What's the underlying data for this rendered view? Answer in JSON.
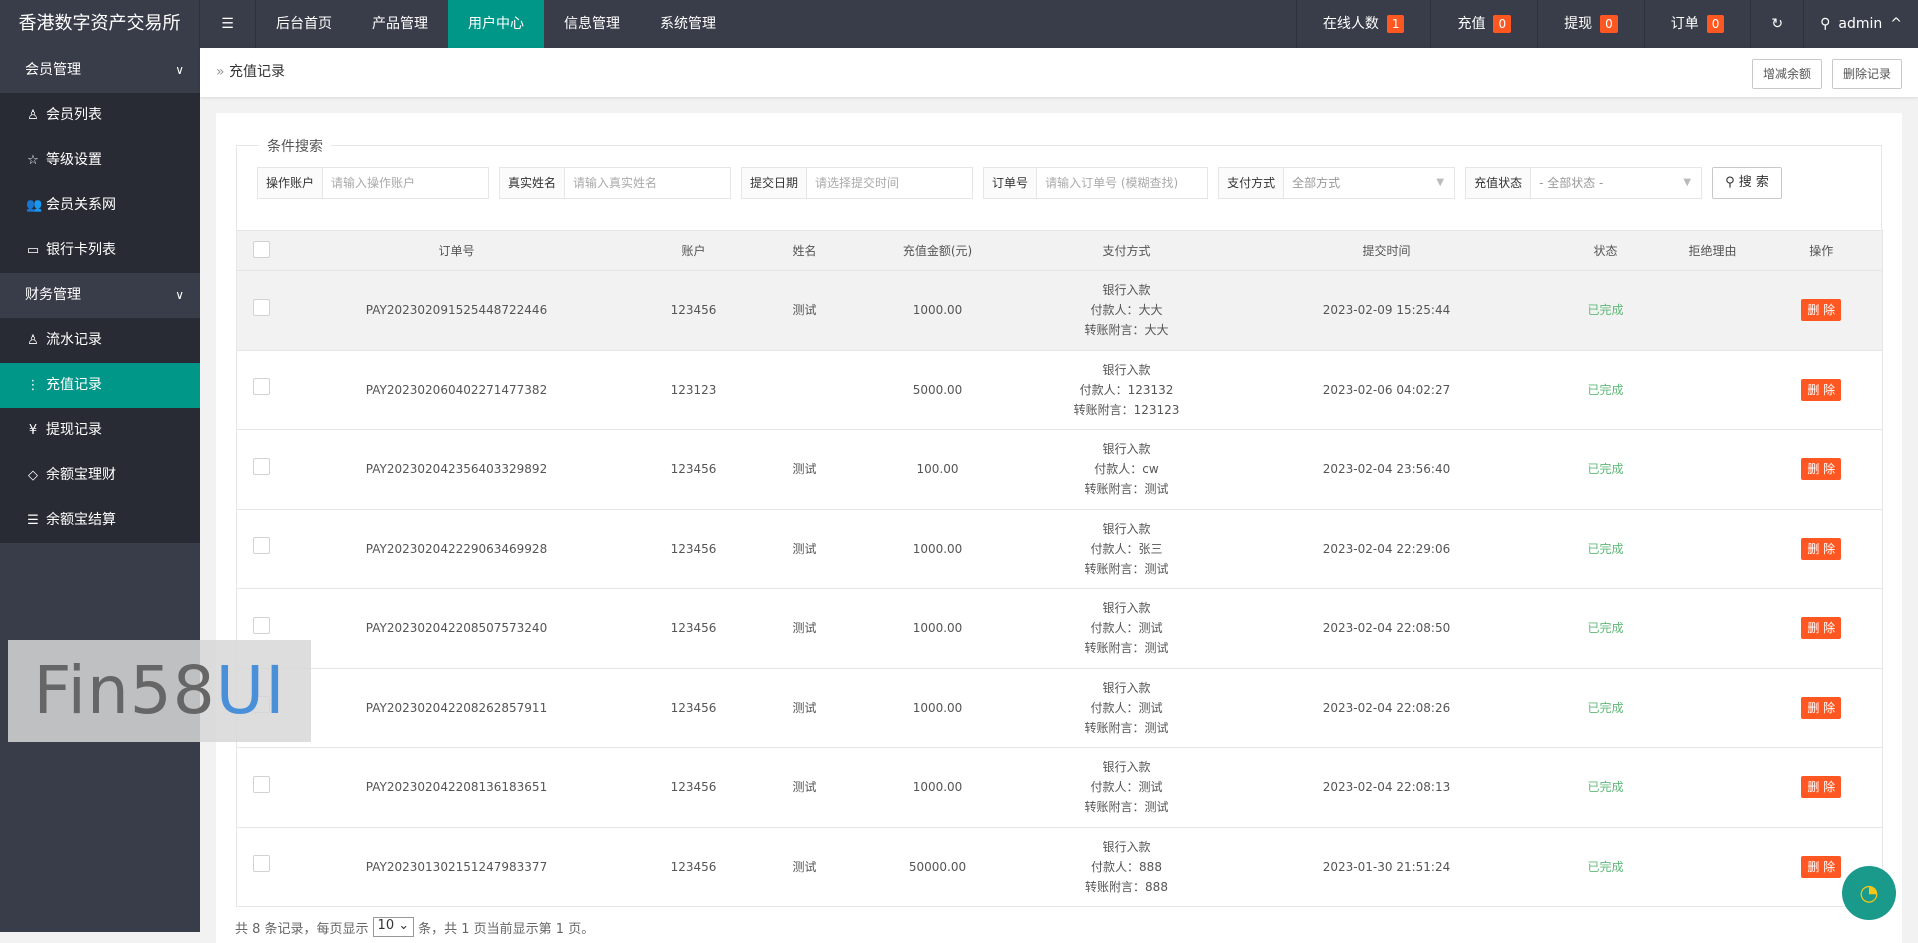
{
  "app_title": "香港数字资产交易所",
  "top_nav": [
    {
      "label": "后台首页"
    },
    {
      "label": "产品管理"
    },
    {
      "label": "用户中心",
      "active": true
    },
    {
      "label": "信息管理"
    },
    {
      "label": "系统管理"
    }
  ],
  "top_right": {
    "online": {
      "label": "在线人数",
      "count": "1"
    },
    "recharge": {
      "label": "充值",
      "count": "0"
    },
    "withdraw": {
      "label": "提现",
      "count": "0"
    },
    "order": {
      "label": "订单",
      "count": "0"
    },
    "user": "admin"
  },
  "sidebar": {
    "groups": [
      {
        "label": "会员管理",
        "items": [
          {
            "label": "会员列表",
            "icon": "user-icon"
          },
          {
            "label": "等级设置",
            "icon": "star-icon"
          },
          {
            "label": "会员关系网",
            "icon": "users-icon"
          },
          {
            "label": "银行卡列表",
            "icon": "card-icon"
          }
        ]
      },
      {
        "label": "财务管理",
        "items": [
          {
            "label": "流水记录",
            "icon": "user-icon"
          },
          {
            "label": "充值记录",
            "icon": "more-icon",
            "active": true
          },
          {
            "label": "提现记录",
            "icon": "yen-icon"
          },
          {
            "label": "余额宝理财",
            "icon": "diamond-icon"
          },
          {
            "label": "余额宝结算",
            "icon": "list-icon"
          }
        ]
      }
    ]
  },
  "breadcrumb": "充值记录",
  "toolbar": {
    "adjust": "增减余额",
    "delete": "删除记录"
  },
  "search": {
    "legend": "条件搜索",
    "account": {
      "label": "操作账户",
      "placeholder": "请输入操作账户"
    },
    "name": {
      "label": "真实姓名",
      "placeholder": "请输入真实姓名"
    },
    "date": {
      "label": "提交日期",
      "placeholder": "请选择提交时间"
    },
    "order": {
      "label": "订单号",
      "placeholder": "请输入订单号 (模糊查找)"
    },
    "pay": {
      "label": "支付方式",
      "value": "全部方式"
    },
    "status": {
      "label": "充值状态",
      "value": "- 全部状态 -"
    },
    "button": "搜 索"
  },
  "table": {
    "headers": [
      "订单号",
      "账户",
      "姓名",
      "充值金额(元)",
      "支付方式",
      "提交时间",
      "状态",
      "拒绝理由",
      "操作"
    ],
    "rows": [
      {
        "order": "PAY20230209152544872244​6",
        "account": "123456",
        "name": "测试",
        "amount": "1000.00",
        "pay": [
          "银行入款",
          "付款人：大大",
          "转账附言：大大"
        ],
        "time": "2023-02-09 15:25:44",
        "status": "已完成",
        "reason": "",
        "action": "删 除"
      },
      {
        "order": "PAY202302060402271477382",
        "account": "123123",
        "name": "",
        "amount": "5000.00",
        "pay": [
          "银行入款",
          "付款人：123132",
          "转账附言：123123"
        ],
        "time": "2023-02-06 04:02:27",
        "status": "已完成",
        "reason": "",
        "action": "删 除"
      },
      {
        "order": "PAY202302042356403329892",
        "account": "123456",
        "name": "测试",
        "amount": "100.00",
        "pay": [
          "银行入款",
          "付款人：cw",
          "转账附言：测试"
        ],
        "time": "2023-02-04 23:56:40",
        "status": "已完成",
        "reason": "",
        "action": "删 除"
      },
      {
        "order": "PAY202302042229063469928",
        "account": "123456",
        "name": "测试",
        "amount": "1000.00",
        "pay": [
          "银行入款",
          "付款人：张三",
          "转账附言：测试"
        ],
        "time": "2023-02-04 22:29:06",
        "status": "已完成",
        "reason": "",
        "action": "删 除"
      },
      {
        "order": "PAY202302042208507573240",
        "account": "123456",
        "name": "测试",
        "amount": "1000.00",
        "pay": [
          "银行入款",
          "付款人：测试",
          "转账附言：测试"
        ],
        "time": "2023-02-04 22:08:50",
        "status": "已完成",
        "reason": "",
        "action": "删 除"
      },
      {
        "order": "PAY202302042208262857911",
        "account": "123456",
        "name": "测试",
        "amount": "1000.00",
        "pay": [
          "银行入款",
          "付款人：测试",
          "转账附言：测试"
        ],
        "time": "2023-02-04 22:08:26",
        "status": "已完成",
        "reason": "",
        "action": "删 除"
      },
      {
        "order": "PAY202302042208136183651",
        "account": "123456",
        "name": "测试",
        "amount": "1000.00",
        "pay": [
          "银行入款",
          "付款人：测试",
          "转账附言：测试"
        ],
        "time": "2023-02-04 22:08:13",
        "status": "已完成",
        "reason": "",
        "action": "删 除"
      },
      {
        "order": "PAY202301302151247983377",
        "account": "123456",
        "name": "测试",
        "amount": "50000.00",
        "pay": [
          "银行入款",
          "付款人：888",
          "转账附言：888"
        ],
        "time": "2023-01-30 21:51:24",
        "status": "已完成",
        "reason": "",
        "action": "删 除"
      }
    ]
  },
  "pagination": {
    "prefix": "共 8 条记录，每页显示",
    "per_page": "10",
    "suffix": "条，共 1 页当前显示第 1 页。"
  },
  "watermark": {
    "part1": "Fin58",
    "part2": "UI"
  },
  "colors": {
    "topbar": "#393d49",
    "accent": "#009688",
    "badge": "#ff5722",
    "success": "#5fb878"
  }
}
